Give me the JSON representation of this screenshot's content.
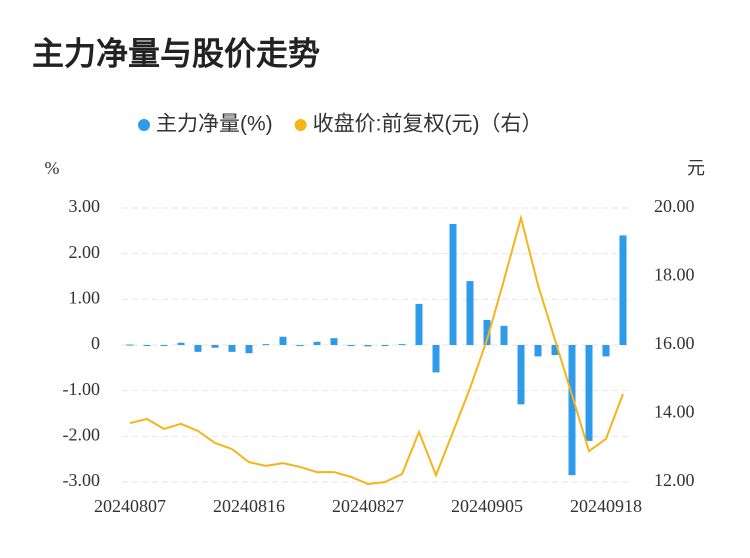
{
  "chart_data": {
    "type": "bar_line",
    "title": "主力净量与股价走势",
    "y_label": "%",
    "y2_label": "元",
    "categories": [
      "20240807",
      null,
      null,
      null,
      null,
      null,
      null,
      "20240816",
      null,
      null,
      null,
      null,
      null,
      null,
      "20240827",
      null,
      null,
      null,
      null,
      null,
      null,
      "20240905",
      null,
      null,
      null,
      null,
      null,
      null,
      "20240918",
      null
    ],
    "series": [
      {
        "name": "主力净量(%)",
        "color": "#2d9bea",
        "type": "bar",
        "values": [
          0.01,
          -0.02,
          -0.01,
          0.05,
          -0.15,
          -0.06,
          -0.15,
          -0.18,
          0.02,
          0.18,
          0,
          0.07,
          0.15,
          -0.01,
          -0.03,
          0,
          0.02,
          0.9,
          -0.6,
          2.65,
          1.4,
          0.55,
          0.42,
          -1.3,
          -0.25,
          -0.22,
          -2.85,
          -2.1,
          -0.25,
          2.4
        ]
      },
      {
        "name": "收盘价:前复权(元)（右）",
        "color": "#f5b51a",
        "type": "line",
        "axis": "y2",
        "values": [
          13.72,
          13.84,
          13.55,
          13.7,
          13.49,
          13.14,
          12.96,
          12.58,
          12.47,
          12.55,
          12.44,
          12.29,
          12.29,
          12.15,
          11.94,
          12.0,
          12.23,
          13.46,
          12.2,
          13.46,
          14.74,
          16.15,
          17.9,
          19.71,
          17.75,
          16.15,
          14.54,
          12.9,
          13.26,
          14.57
        ]
      }
    ],
    "ylim": [
      -3,
      3
    ],
    "yticks": [
      {
        "value": 3,
        "label": "3.00"
      },
      {
        "value": 2,
        "label": "2.00"
      },
      {
        "value": 1,
        "label": "1.00"
      },
      0,
      {
        "value": -1,
        "label": "-1.00"
      },
      {
        "value": -2,
        "label": "-2.00"
      },
      {
        "value": -3,
        "label": "-3.00"
      }
    ],
    "y2lim": [
      12,
      20
    ],
    "y2ticks": [
      {
        "value": 20,
        "label": "20.00"
      },
      {
        "value": 18,
        "label": "18.00"
      },
      {
        "value": 16,
        "label": "16.00"
      },
      {
        "value": 14,
        "label": "14.00"
      },
      {
        "value": 12,
        "label": "12.00"
      }
    ],
    "grid": true
  }
}
